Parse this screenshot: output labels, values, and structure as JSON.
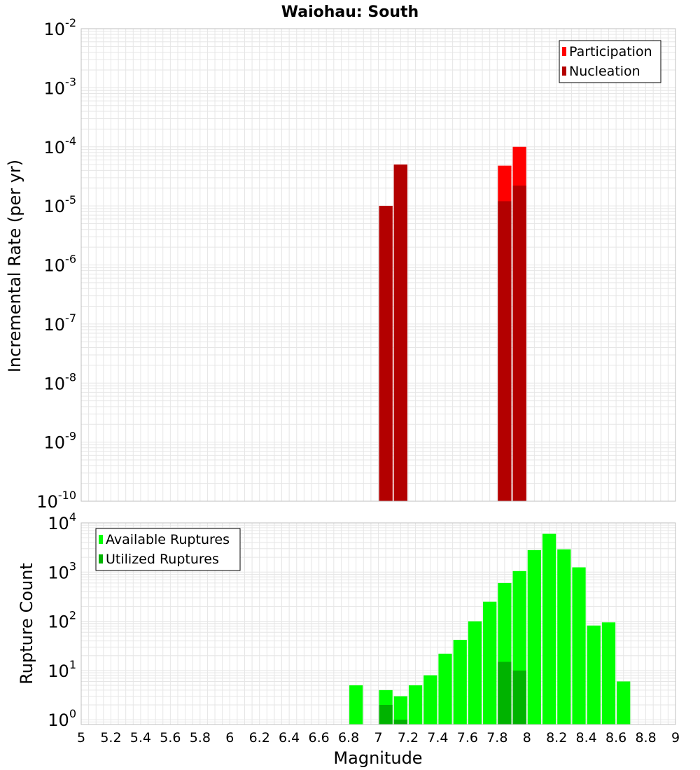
{
  "title": "Waiohau: South",
  "xlabel": "Magnitude",
  "x_ticks": [
    "5",
    "5.2",
    "5.4",
    "5.6",
    "5.8",
    "6",
    "6.2",
    "6.4",
    "6.6",
    "6.8",
    "7",
    "7.2",
    "7.4",
    "7.6",
    "7.8",
    "8",
    "8.2",
    "8.4",
    "8.6",
    "8.8",
    "9"
  ],
  "colors": {
    "participation": "#ff0000",
    "nucleation": "#b30000",
    "available": "#00ff00",
    "utilized": "#00b300",
    "grid": "#e6e6e6",
    "frame": "#bfbfbf"
  },
  "chart_data": [
    {
      "type": "bar",
      "panel": "top",
      "ylabel": "Incremental Rate (per yr)",
      "yscale": "log",
      "ylim": [
        1e-10,
        0.01
      ],
      "xlim": [
        5,
        9
      ],
      "y_tick_exponents": [
        "-2",
        "-3",
        "-4",
        "-5",
        "-6",
        "-7",
        "-8",
        "-9",
        "-10"
      ],
      "legend_position": "top-right",
      "series": [
        {
          "name": "Participation",
          "x": [
            7.05,
            7.15,
            7.85,
            7.95
          ],
          "values": [
            1e-05,
            5e-05,
            4.8e-05,
            0.0001
          ]
        },
        {
          "name": "Nucleation",
          "x": [
            7.05,
            7.15,
            7.85,
            7.95
          ],
          "values": [
            1e-05,
            5e-05,
            1.2e-05,
            2.2e-05
          ]
        }
      ]
    },
    {
      "type": "bar",
      "panel": "bottom",
      "ylabel": "Rupture Count",
      "yscale": "log",
      "ylim": [
        0.8,
        10000
      ],
      "xlim": [
        5,
        9
      ],
      "y_tick_exponents": [
        "4",
        "3",
        "2",
        "1",
        "0"
      ],
      "legend_position": "top-left",
      "series": [
        {
          "name": "Available Ruptures",
          "x": [
            6.85,
            7.05,
            7.15,
            7.25,
            7.35,
            7.45,
            7.55,
            7.65,
            7.75,
            7.85,
            7.95,
            8.05,
            8.15,
            8.25,
            8.35,
            8.45,
            8.55,
            8.65
          ],
          "values": [
            5,
            4,
            3,
            5,
            8,
            22,
            42,
            100,
            250,
            600,
            1050,
            2800,
            6000,
            2900,
            1250,
            82,
            95,
            6
          ]
        },
        {
          "name": "Utilized Ruptures",
          "x": [
            7.05,
            7.15,
            7.85,
            7.95
          ],
          "values": [
            2,
            1,
            15,
            10
          ]
        }
      ]
    }
  ]
}
